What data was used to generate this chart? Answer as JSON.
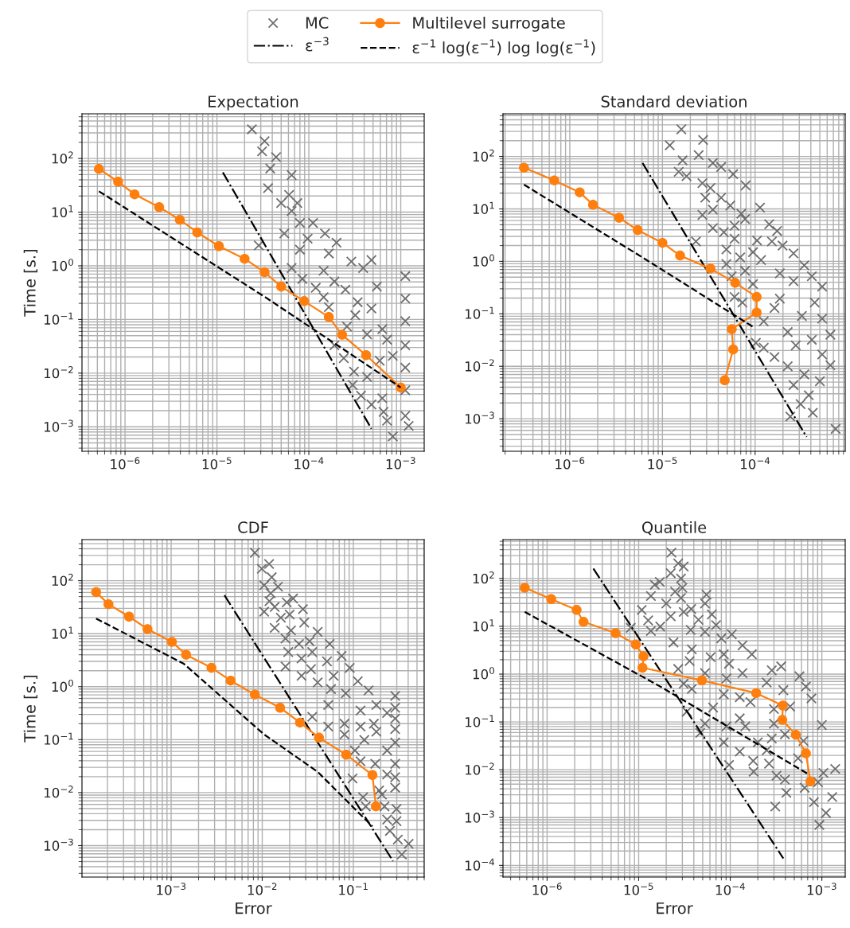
{
  "chart_data": [
    {
      "type": "line",
      "title": "Expectation",
      "ylabel": "Time [s.]",
      "log": "xy",
      "grid": true,
      "legend": "top",
      "xlim": [
        3.4e-07,
        0.0018
      ],
      "ylim": [
        0.00035,
        680
      ],
      "xticks": [
        {
          "value": 1e-06,
          "label": "10$^{−6}$"
        },
        {
          "value": 1e-05,
          "label": "10$^{−5}$"
        },
        {
          "value": 0.0001,
          "label": "10$^{−4}$"
        },
        {
          "value": 0.001,
          "label": "10$^{−3}$"
        }
      ],
      "yticks": [
        {
          "value": 0.001,
          "label": "10$^{−3}$"
        },
        {
          "value": 0.01,
          "label": "10$^{−2}$"
        },
        {
          "value": 0.1,
          "label": "10$^{−1}$"
        },
        {
          "value": 1,
          "label": "10$^{0}$"
        },
        {
          "value": 10,
          "label": "10$^{1}$"
        },
        {
          "value": 100,
          "label": "10$^{2}$"
        }
      ],
      "series": [
        {
          "name": "MC",
          "type": "scatter",
          "marker": "cross",
          "color": "#6e6e6e",
          "x": [
            2.4e-05,
            3.3e-05,
            3.1e-05,
            4.4e-05,
            3.8e-05,
            6.5e-05,
            3.6e-05,
            6.1e-05,
            5e-05,
            7.5e-05,
            6.5e-05,
            8e-05,
            0.000111,
            0.00015,
            5.4e-05,
            9.7e-05,
            2.85e-05,
            0.0002,
            8e-05,
            0.000165,
            0.00029,
            0.00048,
            6.5e-05,
            0.000145,
            0.00039,
            8.5e-05,
            0.00019,
            0.00055,
            0.000119,
            0.00025,
            0.000145,
            0.00034,
            0.000165,
            0.00048,
            0.00032,
            0.00026,
            0.00043,
            0.00063,
            0.00071,
            0.00019,
            0.00024,
            0.00082,
            0.00059,
            0.00043,
            0.00031,
            0.0003,
            0.00037,
            0.00048,
            0.00063,
            0.00065,
            0.00071,
            0.00082,
            0.00122,
            0.00112,
            0.00112,
            0.00112,
            0.00112,
            0.00112,
            0.00112,
            0.00112
          ],
          "values": [
            350,
            210,
            136,
            106,
            65,
            49,
            28,
            21,
            14.8,
            14.8,
            10.5,
            6.3,
            6.3,
            4.0,
            4.0,
            3.2,
            2.4,
            2.7,
            2.0,
            1.7,
            1.2,
            1.28,
            0.91,
            0.81,
            0.91,
            0.57,
            0.51,
            0.41,
            0.39,
            0.36,
            0.26,
            0.21,
            0.17,
            0.16,
            0.12,
            0.074,
            0.053,
            0.066,
            0.042,
            0.033,
            0.019,
            0.021,
            0.017,
            0.0085,
            0.0107,
            0.006,
            0.0038,
            0.0026,
            0.0034,
            0.0019,
            0.0013,
            0.00066,
            0.00104,
            0.64,
            0.245,
            0.093,
            0.033,
            0.0127,
            0.0048,
            0.0016
          ]
        },
        {
          "name": "ε$^{−3}$",
          "line_style": "dashdot",
          "color": "#000000",
          "x": [
            1.16e-05,
            0.00048
          ],
          "values": [
            55,
            0.00092
          ]
        },
        {
          "name": "Multilevel surrogate",
          "marker": "circle",
          "color": "#ff7f0e",
          "x": [
            5.2e-07,
            8.4e-07,
            1.27e-06,
            2.35e-06,
            3.95e-06,
            6.1e-06,
            1.05e-05,
            2e-05,
            3.3e-05,
            5e-05,
            8.9e-05,
            0.000165,
            0.00023,
            0.00042,
            0.001
          ],
          "values": [
            64,
            37,
            21.5,
            12.4,
            7.2,
            4.2,
            2.33,
            1.35,
            0.76,
            0.41,
            0.22,
            0.111,
            0.052,
            0.0216,
            0.0054
          ]
        },
        {
          "name": "ε$^{−1}$ log(ε$^{−1}$) log log(ε$^{−1}$)",
          "line_style": "dashed",
          "color": "#000000",
          "x": [
            5.2e-07,
            3.36e-05,
            0.001
          ],
          "values": [
            24.5,
            0.26,
            0.0054
          ]
        }
      ]
    },
    {
      "type": "line",
      "title": "Standard deviation",
      "log": "xy",
      "grid": true,
      "xlim": [
        1.9e-07,
        0.00094
      ],
      "ylim": [
        0.00024,
        650
      ],
      "xticks": [
        {
          "value": 1e-06,
          "label": "10$^{−6}$"
        },
        {
          "value": 1e-05,
          "label": "10$^{−5}$"
        },
        {
          "value": 0.0001,
          "label": "10$^{−4}$"
        }
      ],
      "yticks": [
        {
          "value": 0.001,
          "label": "10$^{−3}$"
        },
        {
          "value": 0.01,
          "label": "10$^{−2}$"
        },
        {
          "value": 0.1,
          "label": "10$^{−1}$"
        },
        {
          "value": 1,
          "label": "10$^{0}$"
        },
        {
          "value": 10,
          "label": "10$^{1}$"
        },
        {
          "value": 100,
          "label": "10$^{2}$"
        }
      ],
      "series": [
        {
          "type": "scatter",
          "marker": "cross",
          "color": "#6e6e6e",
          "x": [
            1.6e-05,
            1.2e-05,
            2.75e-05,
            2.46e-05,
            1.65e-05,
            3.5e-05,
            1.5e-05,
            4.3e-05,
            1.82e-05,
            5.8e-05,
            7.9e-05,
            2.7e-05,
            3.3e-05,
            2.9e-05,
            4.3e-05,
            5.4e-05,
            0.000113,
            3.5e-05,
            2.7e-05,
            7.1e-05,
            7.8e-05,
            0.000142,
            6e-05,
            3.5e-05,
            0.000173,
            4.6e-05,
            2.3e-05,
            6e-05,
            0.000105,
            0.000152,
            4.9e-05,
            9.5e-05,
            0.000198,
            0.00026,
            6.9e-05,
            4.9e-05,
            0.000116,
            0.00034,
            7.8e-05,
            0.000185,
            0.00041,
            5.6e-05,
            0.00026,
            9.5e-05,
            0.00053,
            6e-05,
            0.000185,
            0.00044,
            7.3e-05,
            0.000162,
            0.00032,
            0.000124,
            0.00053,
            0.000225,
            0.00065,
            0.000102,
            0.00041,
            0.000124,
            0.000275,
            0.000162,
            0.00053,
            0.000225,
            0.00065,
            0.00034,
            0.0005,
            0.00026,
            0.00038,
            0.00031,
            0.00042,
            0.00024,
            0.00074
          ],
          "values": [
            329,
            163,
            206,
            106,
            84,
            75,
            51,
            63,
            42,
            46,
            28,
            31,
            25,
            16.4,
            16.4,
            11.6,
            10.6,
            9.7,
            7.7,
            8.1,
            6.4,
            5.1,
            4.8,
            4.3,
            3.8,
            3.6,
            2.4,
            2.7,
            2.5,
            2.4,
            1.69,
            1.5,
            2.0,
            1.42,
            1.19,
            0.89,
            1.06,
            0.84,
            0.66,
            0.59,
            0.52,
            0.52,
            0.42,
            0.37,
            0.33,
            0.21,
            0.195,
            0.164,
            0.164,
            0.129,
            0.091,
            0.072,
            0.081,
            0.045,
            0.04,
            0.028,
            0.032,
            0.0225,
            0.025,
            0.015,
            0.0168,
            0.01,
            0.0105,
            0.007,
            0.0052,
            0.0044,
            0.0028,
            0.0019,
            0.0013,
            0.0011,
            0.00064
          ]
        },
        {
          "line_style": "dashdot",
          "color": "#000000",
          "x": [
            6.1e-06,
            0.00036
          ],
          "values": [
            75,
            0.00045
          ]
        },
        {
          "marker": "circle",
          "color": "#ff7f0e",
          "x": [
            3.2e-07,
            6.8e-07,
            1.28e-06,
            1.78e-06,
            3.4e-06,
            5.4e-06,
            1e-05,
            1.55e-05,
            3.3e-05,
            6.1e-05,
            0.000104,
            0.000104,
            5.6e-05,
            5.8e-05,
            4.7e-05
          ],
          "values": [
            61,
            35,
            20.7,
            12.0,
            6.8,
            3.95,
            2.25,
            1.29,
            0.73,
            0.39,
            0.21,
            0.106,
            0.051,
            0.021,
            0.0054
          ]
        },
        {
          "line_style": "dashed",
          "color": "#000000",
          "x": [
            3.2e-07,
            5.5e-06,
            9.9e-05
          ],
          "values": [
            29,
            1.33,
            0.054
          ]
        }
      ]
    },
    {
      "type": "line",
      "title": "CDF",
      "xlabel": "Error",
      "ylabel": "Time [s.]",
      "log": "xy",
      "grid": true,
      "xlim": [
        0.000105,
        0.6
      ],
      "ylim": [
        0.000255,
        596
      ],
      "xticks": [
        {
          "value": 0.001,
          "label": "10$^{−3}$"
        },
        {
          "value": 0.01,
          "label": "10$^{−2}$"
        },
        {
          "value": 0.1,
          "label": "10$^{−1}$"
        }
      ],
      "yticks": [
        {
          "value": 0.001,
          "label": "10$^{−3}$"
        },
        {
          "value": 0.01,
          "label": "10$^{−2}$"
        },
        {
          "value": 0.1,
          "label": "10$^{−1}$"
        },
        {
          "value": 1,
          "label": "10$^{0}$"
        },
        {
          "value": 10,
          "label": "10$^{1}$"
        },
        {
          "value": 100,
          "label": "10$^{2}$"
        }
      ],
      "series": [
        {
          "type": "scatter",
          "marker": "cross",
          "color": "#6e6e6e",
          "x": [
            0.0083,
            0.0119,
            0.0099,
            0.0127,
            0.0105,
            0.0149,
            0.0124,
            0.0218,
            0.012,
            0.0186,
            0.0137,
            0.0105,
            0.028,
            0.02,
            0.016,
            0.0289,
            0.0137,
            0.0207,
            0.0406,
            0.018,
            0.0253,
            0.0331,
            0.055,
            0.0193,
            0.0354,
            0.0745,
            0.027,
            0.0514,
            0.018,
            0.0914,
            0.0343,
            0.0608,
            0.112,
            0.027,
            0.0406,
            0.147,
            0.288,
            0.0569,
            0.0826,
            0.179,
            0.235,
            0.0354,
            0.053,
            0.12,
            0.288,
            0.08,
            0.168,
            0.288,
            0.053,
            0.12,
            0.179,
            0.08,
            0.288,
            0.132,
            0.235,
            0.288,
            0.104,
            0.174,
            0.288,
            0.12,
            0.098,
            0.235,
            0.288,
            0.192,
            0.288,
            0.128,
            0.22,
            0.298,
            0.137,
            0.235,
            0.298,
            0.252,
            0.308,
            0.405,
            0.341,
            0.206
          ],
          "values": [
            337,
            207,
            168,
            116,
            82,
            77,
            58,
            46,
            41,
            39,
            32,
            26,
            29,
            23,
            20,
            16.2,
            12.9,
            11.5,
            10.8,
            8.1,
            6.4,
            7.2,
            6.4,
            4.5,
            4.5,
            3.8,
            3.4,
            3.0,
            2.4,
            2.26,
            2.14,
            1.6,
            1.27,
            1.6,
            1.2,
            0.85,
            0.67,
            0.9,
            0.75,
            0.45,
            0.32,
            0.27,
            0.45,
            0.355,
            0.4,
            0.2,
            0.2,
            0.25,
            0.177,
            0.177,
            0.141,
            0.125,
            0.158,
            0.099,
            0.0625,
            0.0885,
            0.0625,
            0.035,
            0.035,
            0.039,
            0.0185,
            0.022,
            0.0196,
            0.011,
            0.0124,
            0.0082,
            0.0055,
            0.0049,
            0.0055,
            0.0031,
            0.0029,
            0.0019,
            0.0013,
            0.00108,
            0.00068,
            0.0092
          ]
        },
        {
          "line_style": "dashdot",
          "color": "#000000",
          "x": [
            0.00385,
            0.273
          ],
          "values": [
            53,
            0.00051
          ]
        },
        {
          "marker": "circle",
          "color": "#ff7f0e",
          "x": [
            0.00015,
            0.000205,
            0.000345,
            0.00055,
            0.00102,
            0.00146,
            0.00277,
            0.0045,
            0.0083,
            0.0157,
            0.026,
            0.042,
            0.0836,
            0.162,
            0.177
          ],
          "values": [
            61,
            36,
            21,
            12.2,
            7.0,
            4.0,
            2.27,
            1.3,
            0.71,
            0.4,
            0.21,
            0.109,
            0.052,
            0.0215,
            0.0055
          ]
        },
        {
          "line_style": "dashed",
          "color": "#000000",
          "x": [
            0.00015,
            0.00138,
            0.0105,
            0.0406,
            0.162
          ],
          "values": [
            19.3,
            2.7,
            0.125,
            0.0247,
            0.0023
          ]
        }
      ]
    },
    {
      "type": "line",
      "title": "Quantile",
      "xlabel": "Error",
      "log": "xy",
      "grid": true,
      "xlim": [
        3.3e-07,
        0.0018
      ],
      "ylim": [
        5.7e-05,
        650
      ],
      "xticks": [
        {
          "value": 1e-06,
          "label": "10$^{−6}$"
        },
        {
          "value": 1e-05,
          "label": "10$^{−5}$"
        },
        {
          "value": 0.0001,
          "label": "10$^{−4}$"
        },
        {
          "value": 0.001,
          "label": "10$^{−3}$"
        }
      ],
      "yticks": [
        {
          "value": 0.0001,
          "label": "10$^{−4}$"
        },
        {
          "value": 0.001,
          "label": "10$^{−3}$"
        },
        {
          "value": 0.01,
          "label": "10$^{−2}$"
        },
        {
          "value": 0.1,
          "label": "10$^{−1}$"
        },
        {
          "value": 1,
          "label": "10$^{0}$"
        },
        {
          "value": 10,
          "label": "10$^{1}$"
        },
        {
          "value": 100,
          "label": "10$^{2}$"
        }
      ],
      "series": [
        {
          "type": "scatter",
          "marker": "cross",
          "color": "#6e6e6e",
          "x": [
            2.28e-05,
            2.7e-05,
            3.1e-05,
            2.24e-05,
            2.9e-05,
            1.7e-05,
            1.5e-05,
            3e-05,
            2.5e-05,
            1.36e-05,
            5.5e-05,
            2.9e-05,
            2e-05,
            5.3e-05,
            1.08e-05,
            3.75e-05,
            3.1e-05,
            2.24e-05,
            6.3e-05,
            4.5e-05,
            1.27e-05,
            7e-05,
            1.72e-05,
            8.2e-06,
            3.7e-05,
            1.36e-05,
            0.000104,
            5.3e-05,
            8e-05,
            2.4e-05,
            0.000136,
            3.8e-05,
            0.000172,
            8.5e-05,
            6.1e-05,
            3.6e-05,
            9.7e-05,
            2.7e-05,
            0.000136,
            0.000284,
            0.00036,
            0.00057,
            0.00025,
            5.3e-05,
            9.1e-05,
            0.00067,
            3.1e-05,
            3.8e-05,
            0.00038,
            8.5e-05,
            0.00077,
            0.000127,
            0.000166,
            0.00045,
            6.5e-05,
            3.35e-05,
            0.0003,
            0.000127,
            0.001,
            5.3e-05,
            0.0003,
            9.1e-05,
            0.000146,
            4.7e-05,
            0.000395,
            0.000284,
            8.5e-05,
            0.0002,
            0.00063,
            0.000127,
            0.00025,
            0.00055,
            9.7e-05,
            0.000178,
            0.000265,
            0.00018,
            0.00032,
            0.00104,
            0.0014,
            0.000395,
            0.00065,
            0.00091,
            0.00041,
            0.00082,
            0.0013,
            0.00031,
            0.00111,
            0.00094
          ],
          "values": [
            347,
            207,
            178,
            129,
            100,
            85,
            74,
            64,
            53,
            43,
            46,
            39,
            30,
            30,
            22,
            23,
            20,
            16.2,
            17.7,
            13.7,
            13.3,
            10.6,
            9.9,
            9.3,
            8.4,
            8.0,
            6.8,
            7.7,
            5.6,
            4.6,
            4.0,
            3.3,
            2.6,
            2.6,
            2.27,
            1.87,
            1.65,
            1.28,
            1.05,
            1.2,
            1.45,
            0.9,
            0.67,
            1.05,
            0.81,
            0.55,
            0.63,
            0.49,
            0.46,
            0.38,
            0.31,
            0.33,
            0.26,
            0.21,
            0.2,
            0.164,
            0.186,
            0.119,
            0.086,
            0.092,
            0.092,
            0.081,
            0.081,
            0.059,
            0.055,
            0.045,
            0.0375,
            0.0375,
            0.04,
            0.024,
            0.0255,
            0.0174,
            0.0126,
            0.0153,
            0.0134,
            0.0091,
            0.0075,
            0.0086,
            0.0104,
            0.0062,
            0.0042,
            0.0055,
            0.0033,
            0.0021,
            0.0027,
            0.0017,
            0.00125,
            0.0007
          ]
        },
        {
          "line_style": "dashdot",
          "color": "#000000",
          "x": [
            3.2e-06,
            0.00038
          ],
          "values": [
            161,
            0.00014
          ]
        },
        {
          "marker": "circle",
          "color": "#ff7f0e",
          "x": [
            5.7e-07,
            1.11e-06,
            2.1e-06,
            2.5e-06,
            5.6e-06,
            9.3e-06,
            1.13e-05,
            1.1e-05,
            4.9e-05,
            0.000192,
            0.000375,
            0.00037,
            0.00052,
            0.00067,
            0.00075
          ],
          "values": [
            64,
            37,
            22,
            12.4,
            7.2,
            4.15,
            2.36,
            1.36,
            0.74,
            0.4,
            0.22,
            0.11,
            0.054,
            0.022,
            0.0057
          ]
        },
        {
          "line_style": "dashed",
          "color": "#000000",
          "x": [
            5.7e-07,
            1.72e-05,
            0.00072
          ],
          "values": [
            20,
            0.55,
            0.008
          ]
        }
      ]
    }
  ]
}
